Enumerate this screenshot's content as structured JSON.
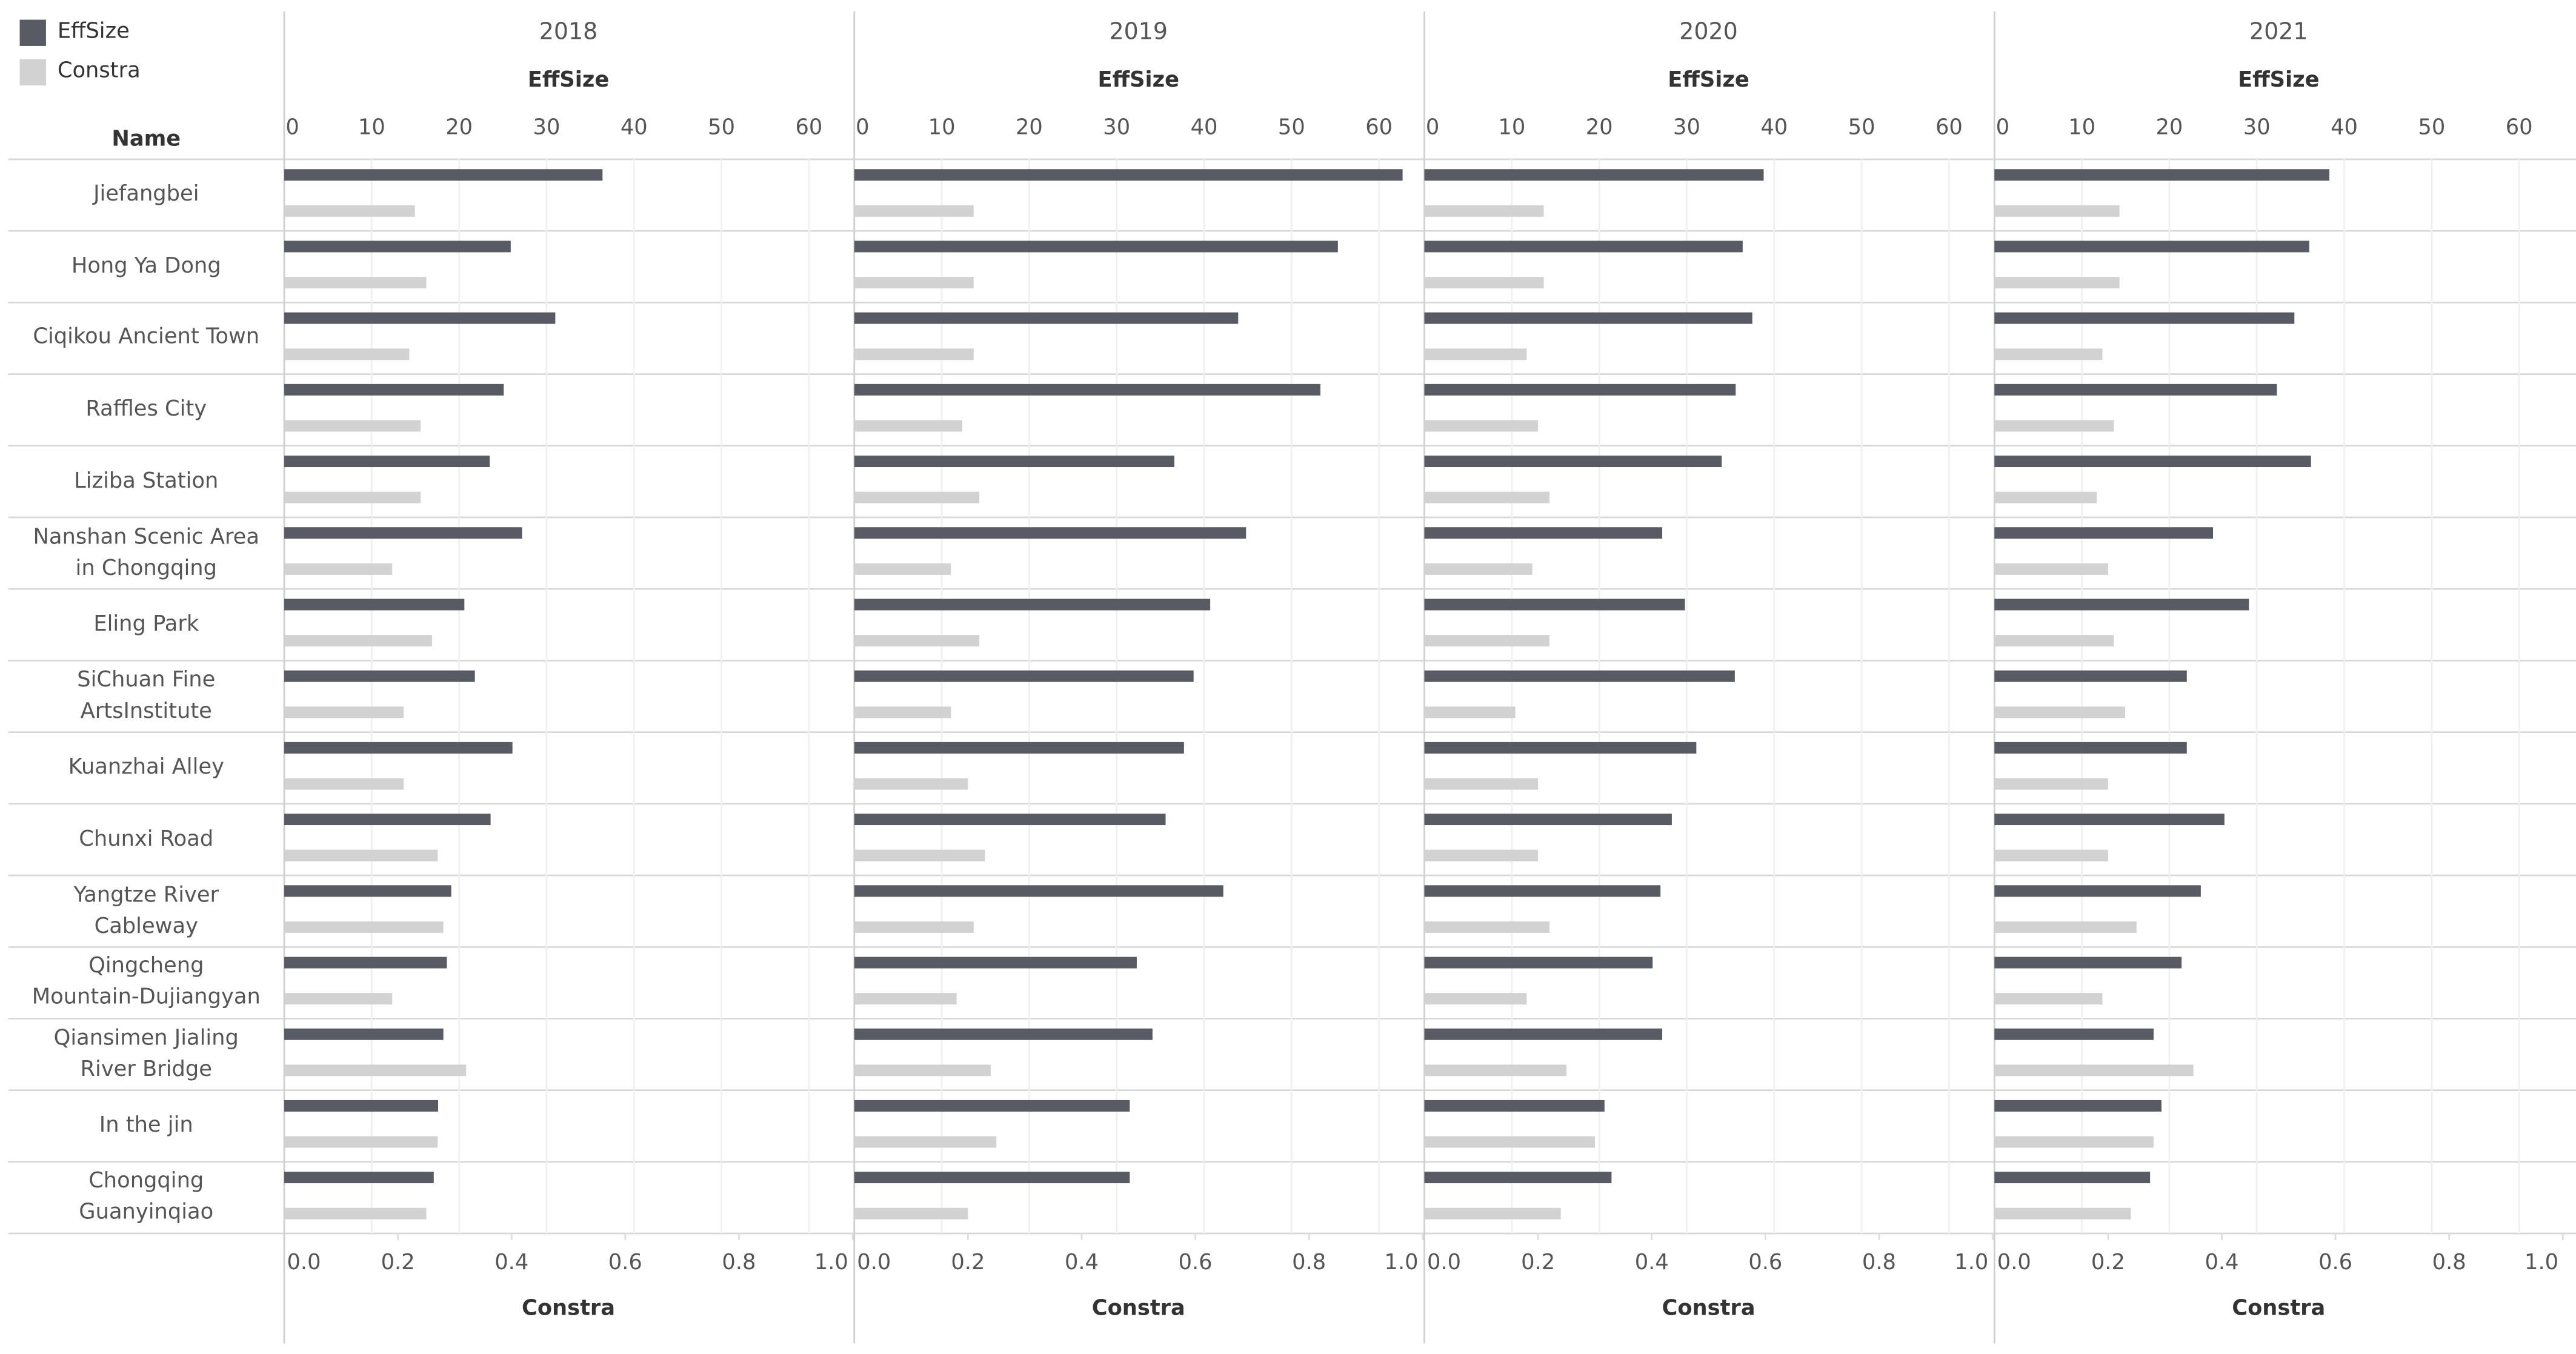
{
  "chart_data": {
    "type": "bar",
    "orientation": "horizontal",
    "category_label": "Name",
    "categories": [
      "Jiefangbei",
      "Hong Ya Dong",
      "Ciqikou Ancient Town",
      "Raffles City",
      "Liziba Station",
      "Nanshan Scenic Area\nin Chongqing",
      "Eling Park",
      "SiChuan Fine\nArtsInstitute",
      "Kuanzhai Alley",
      "Chunxi Road",
      "Yangtze River\nCableway",
      "Qingcheng\nMountain-Dujiangyan",
      "Qiansimen Jialing\nRiver Bridge",
      "In the jin",
      "Chongqing\nGuanyinqiao"
    ],
    "xlabel": "EffSize",
    "xlim": [
      0,
      65
    ],
    "xticks": [
      0,
      10,
      20,
      30,
      40,
      50,
      60
    ],
    "x2label": "Constra",
    "x2lim": [
      0,
      1.0
    ],
    "x2ticks": [
      {
        "value": 0,
        "label": "0.0"
      },
      {
        "value": 0.2,
        "label": "0.2"
      },
      {
        "value": 0.4,
        "label": "0.4"
      },
      {
        "value": 0.6,
        "label": "0.6"
      },
      {
        "value": 0.8,
        "label": "0.8"
      },
      {
        "value": 1.0,
        "label": "1.0"
      }
    ],
    "grid": true,
    "legend": "top-left",
    "series": [
      {
        "name": "EffSize",
        "color": "#585b64",
        "axis": "x"
      },
      {
        "name": "Constra",
        "color": "#d2d2d2",
        "axis": "x2"
      }
    ],
    "panels": [
      {
        "title": "2018",
        "series": [
          {
            "values": [
              36.4,
              25.9,
              31.0,
              25.1,
              23.5,
              27.2,
              20.6,
              21.8,
              26.1,
              23.6,
              19.1,
              18.6,
              18.2,
              17.6,
              17.1
            ]
          },
          {
            "values": [
              0.23,
              0.25,
              0.22,
              0.24,
              0.24,
              0.19,
              0.26,
              0.21,
              0.21,
              0.27,
              0.28,
              0.19,
              0.32,
              0.27,
              0.25
            ]
          }
        ]
      },
      {
        "title": "2019",
        "series": [
          {
            "values": [
              62.7,
              55.3,
              43.9,
              53.3,
              36.6,
              44.8,
              40.7,
              38.8,
              37.7,
              35.6,
              42.2,
              32.3,
              34.1,
              31.5,
              31.5
            ]
          },
          {
            "values": [
              0.21,
              0.21,
              0.21,
              0.19,
              0.22,
              0.17,
              0.22,
              0.17,
              0.2,
              0.23,
              0.21,
              0.18,
              0.24,
              0.25,
              0.2
            ]
          }
        ]
      },
      {
        "title": "2020",
        "series": [
          {
            "values": [
              38.8,
              36.4,
              37.5,
              35.6,
              34.0,
              27.2,
              29.8,
              35.5,
              31.1,
              28.3,
              27.0,
              26.1,
              27.2,
              20.6,
              21.4
            ]
          },
          {
            "values": [
              0.21,
              0.21,
              0.18,
              0.2,
              0.22,
              0.19,
              0.22,
              0.16,
              0.2,
              0.2,
              0.22,
              0.18,
              0.25,
              0.3,
              0.24
            ]
          }
        ]
      },
      {
        "title": "2021",
        "series": [
          {
            "values": [
              38.3,
              36.0,
              34.3,
              32.3,
              36.2,
              25.0,
              29.1,
              22.0,
              22.0,
              26.3,
              23.6,
              21.4,
              18.2,
              19.1,
              17.8
            ]
          },
          {
            "values": [
              0.22,
              0.22,
              0.19,
              0.21,
              0.18,
              0.2,
              0.21,
              0.23,
              0.2,
              0.2,
              0.25,
              0.19,
              0.35,
              0.28,
              0.24
            ]
          }
        ]
      }
    ]
  }
}
